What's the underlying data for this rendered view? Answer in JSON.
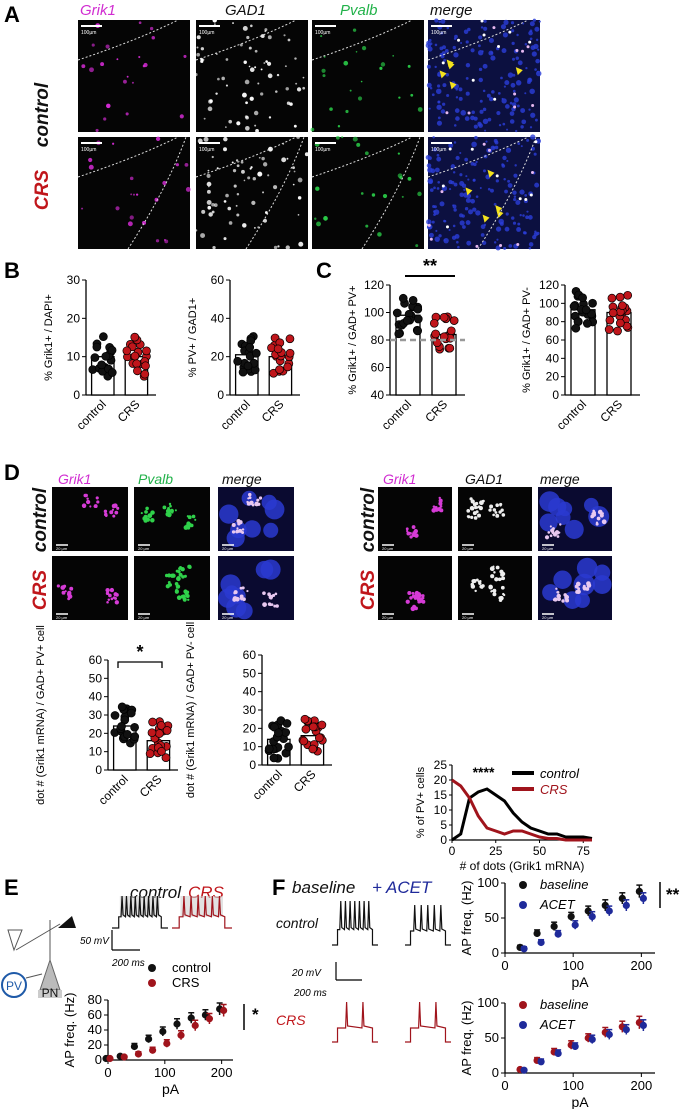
{
  "panels": {
    "A": {
      "letter": "A",
      "columns": [
        "Grik1",
        "GAD1",
        "Pvalb",
        "merge"
      ],
      "column_colors": [
        "#d12dd1",
        "#111111",
        "#22b24a",
        "#111111"
      ],
      "rows": [
        "control",
        "CRS"
      ],
      "row_colors": [
        "#111111",
        "#c0161b"
      ],
      "scalebar": "100µm"
    },
    "B": {
      "letter": "B",
      "charts": [
        {
          "type": "bar",
          "ylabel": "% Grik1+ / DAPI+",
          "ylim": [
            0,
            30
          ],
          "yticks": [
            0,
            10,
            20,
            30
          ],
          "categories": [
            "control",
            "CRS"
          ],
          "means": [
            10,
            10
          ]
        },
        {
          "type": "bar",
          "ylabel": "% PV+ / GAD1+",
          "ylim": [
            0,
            60
          ],
          "yticks": [
            0,
            20,
            40,
            60
          ],
          "categories": [
            "control",
            "CRS"
          ],
          "means": [
            21,
            20
          ]
        }
      ]
    },
    "C": {
      "letter": "C",
      "significance": "**",
      "charts": [
        {
          "type": "bar",
          "ylabel": "% Grik1+ / GAD+ PV+",
          "ylim": [
            40,
            120
          ],
          "yticks": [
            40,
            60,
            80,
            100,
            120
          ],
          "categories": [
            "control",
            "CRS"
          ],
          "means": [
            98,
            84
          ],
          "reference_line": 80
        },
        {
          "type": "bar",
          "ylabel": "% Grik1+ / GAD+ PV-",
          "ylim": [
            0,
            120
          ],
          "yticks": [
            0,
            20,
            40,
            60,
            80,
            100,
            120
          ],
          "categories": [
            "control",
            "CRS"
          ],
          "means": [
            93,
            90
          ]
        }
      ]
    },
    "D": {
      "letter": "D",
      "left_columns": [
        "Grik1",
        "Pvalb",
        "merge"
      ],
      "right_columns": [
        "Grik1",
        "GAD1",
        "merge"
      ],
      "rows": [
        "control",
        "CRS"
      ],
      "scalebar": "20 µm",
      "significance": "*",
      "charts": [
        {
          "type": "bar",
          "ylabel": "dot # (Grik1 mRNA) / GAD+ PV+ cell",
          "ylim": [
            0,
            60
          ],
          "yticks": [
            0,
            10,
            20,
            30,
            40,
            50,
            60
          ],
          "categories": [
            "control",
            "CRS"
          ],
          "means": [
            24,
            16
          ]
        },
        {
          "type": "bar",
          "ylabel": "dot # (Grik1 mRNA) / GAD+ PV- cell",
          "ylim": [
            0,
            60
          ],
          "yticks": [
            0,
            10,
            20,
            30,
            40,
            50,
            60
          ],
          "categories": [
            "control",
            "CRS"
          ],
          "means": [
            14,
            16
          ]
        }
      ],
      "histogram": {
        "type": "line",
        "ylabel": "% of PV+ cells",
        "xlabel": "# of dots (Grik1 mRNA)",
        "xlim": [
          0,
          80
        ],
        "ylim": [
          0,
          25
        ],
        "xticks": [
          0,
          25,
          50,
          75
        ],
        "yticks": [
          0,
          5,
          10,
          15,
          20,
          25
        ],
        "significance": "****",
        "x": [
          0,
          5,
          10,
          15,
          20,
          25,
          30,
          35,
          40,
          45,
          50,
          55,
          60,
          65,
          70,
          75,
          80
        ],
        "series": [
          {
            "name": "control",
            "color": "#000000",
            "values": [
              0,
              2,
              14,
              16,
              17,
              15,
              13,
              9,
              6,
              4,
              3,
              2,
              2,
              1,
              1,
              1,
              0.5
            ]
          },
          {
            "name": "CRS",
            "color": "#a0141c",
            "values": [
              20,
              18,
              14,
              8,
              4,
              3,
              2,
              3,
              3,
              2,
              1,
              0.5,
              0.5,
              0,
              0,
              0,
              0
            ]
          }
        ]
      }
    },
    "E": {
      "letter": "E",
      "diagram_labels": [
        "PV",
        "PN"
      ],
      "trace_titles": [
        "control",
        "CRS"
      ],
      "scalebar_v": "50 mV",
      "scalebar_h": "200 ms",
      "legend": [
        "control",
        "CRS"
      ],
      "significance": "*",
      "chart": {
        "type": "scatter",
        "xlabel": "pA",
        "ylabel": "AP freq. (Hz)",
        "xlim": [
          0,
          220
        ],
        "ylim": [
          0,
          80
        ],
        "xticks": [
          0,
          100,
          200
        ],
        "yticks": [
          0,
          20,
          40,
          60,
          80
        ],
        "x": [
          0,
          25,
          50,
          75,
          100,
          125,
          150,
          175,
          200
        ],
        "series": [
          {
            "name": "control",
            "color": "#111111",
            "values": [
              2,
              5,
              18,
              28,
              38,
              48,
              56,
              60,
              68
            ],
            "errors": [
              1,
              2,
              4,
              5,
              6,
              7,
              7,
              7,
              8
            ]
          },
          {
            "name": "CRS",
            "color": "#a0141c",
            "values": [
              2,
              4,
              8,
              13,
              22,
              33,
              46,
              55,
              66
            ],
            "errors": [
              1,
              2,
              3,
              4,
              5,
              6,
              7,
              7,
              8
            ]
          }
        ]
      }
    },
    "F": {
      "letter": "F",
      "headers": [
        "baseline",
        "+ ACET"
      ],
      "rows": [
        "control",
        "CRS"
      ],
      "scalebar_v": "20 mV",
      "scalebar_h": "200 ms",
      "charts": [
        {
          "type": "scatter",
          "xlabel": "pA",
          "ylabel": "AP freq. (Hz)",
          "xlim": [
            0,
            220
          ],
          "ylim": [
            0,
            100
          ],
          "xticks": [
            0,
            100,
            200
          ],
          "yticks": [
            0,
            50,
            100
          ],
          "legend": [
            "baseline",
            "ACET"
          ],
          "significance": "**",
          "x": [
            25,
            50,
            75,
            100,
            125,
            150,
            175,
            200
          ],
          "series": [
            {
              "name": "baseline",
              "color": "#111111",
              "values": [
                8,
                28,
                38,
                52,
                60,
                68,
                78,
                88
              ],
              "errors": [
                3,
                5,
                6,
                6,
                7,
                8,
                8,
                9
              ]
            },
            {
              "name": "ACET",
              "color": "#1f2a9a",
              "values": [
                6,
                15,
                27,
                40,
                52,
                60,
                68,
                78
              ],
              "errors": [
                3,
                4,
                5,
                6,
                7,
                7,
                8,
                8
              ]
            }
          ]
        },
        {
          "type": "scatter",
          "xlabel": "pA",
          "ylabel": "AP freq. (Hz)",
          "xlim": [
            0,
            220
          ],
          "ylim": [
            0,
            100
          ],
          "xticks": [
            0,
            100,
            200
          ],
          "yticks": [
            0,
            50,
            100
          ],
          "legend": [
            "baseline",
            "ACET"
          ],
          "x": [
            25,
            50,
            75,
            100,
            125,
            150,
            175,
            200
          ],
          "series": [
            {
              "name": "baseline",
              "color": "#a0141c",
              "values": [
                5,
                18,
                30,
                40,
                50,
                58,
                66,
                72
              ],
              "errors": [
                2,
                4,
                5,
                6,
                6,
                7,
                8,
                9
              ]
            },
            {
              "name": "ACET",
              "color": "#1f2a9a",
              "values": [
                4,
                16,
                28,
                38,
                48,
                55,
                62,
                68
              ],
              "errors": [
                2,
                4,
                5,
                5,
                6,
                7,
                7,
                8
              ]
            }
          ]
        }
      ]
    }
  }
}
